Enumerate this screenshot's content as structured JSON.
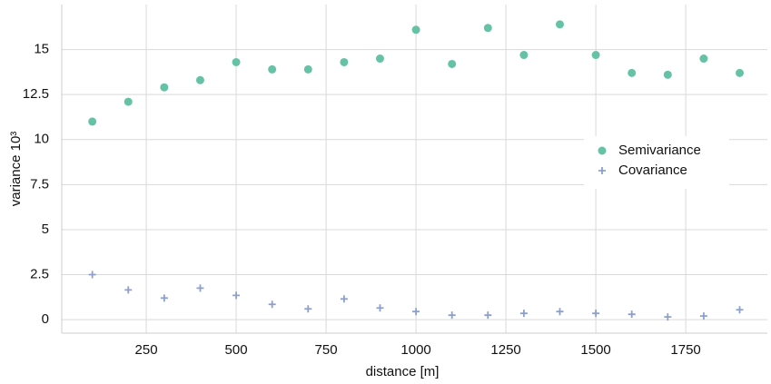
{
  "chart_data": {
    "type": "scatter",
    "x_label": "distance [m]",
    "y_label": "variance 10³",
    "x": [
      100,
      200,
      300,
      400,
      500,
      600,
      700,
      800,
      900,
      1000,
      1100,
      1200,
      1300,
      1400,
      1500,
      1600,
      1700,
      1800,
      1900
    ],
    "series": [
      {
        "name": "Semivariance",
        "color": "#66c2a5",
        "marker": "circle",
        "values": [
          11.0,
          12.1,
          12.9,
          13.3,
          14.3,
          13.9,
          13.9,
          14.3,
          14.5,
          16.1,
          14.2,
          16.2,
          14.7,
          16.4,
          14.7,
          13.7,
          13.6,
          14.5,
          13.7
        ]
      },
      {
        "name": "Covariance",
        "color": "#8da0cb",
        "marker": "plus",
        "values": [
          2.5,
          1.65,
          1.2,
          1.75,
          1.35,
          0.85,
          0.6,
          1.15,
          0.65,
          0.45,
          0.25,
          0.25,
          0.35,
          0.45,
          0.35,
          0.3,
          0.15,
          0.2,
          0.55
        ]
      }
    ],
    "xlim": [
      15,
      1977
    ],
    "ylim": [
      -0.75,
      17.5
    ],
    "xticks": [
      250,
      500,
      750,
      1000,
      1250,
      1500,
      1750
    ],
    "yticks": [
      0,
      2.5,
      5,
      7.5,
      10,
      12.5,
      15
    ],
    "grid": true,
    "legend": "right"
  }
}
